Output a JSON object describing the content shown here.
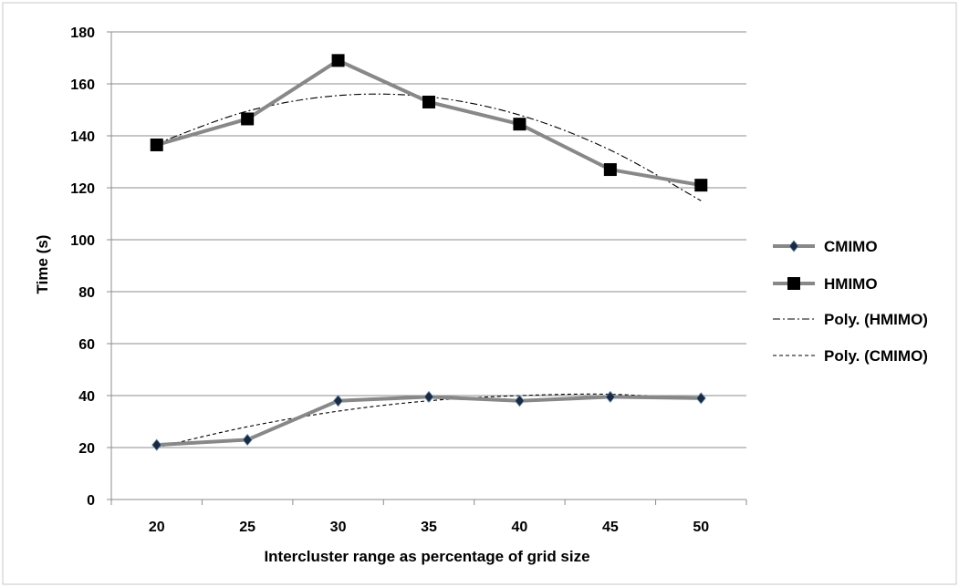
{
  "chart_data": {
    "type": "line",
    "title": "",
    "xlabel": "Intercluster range as percentage of grid size",
    "ylabel": "Time (s)",
    "categories": [
      "20",
      "25",
      "30",
      "35",
      "40",
      "45",
      "50"
    ],
    "ylim": [
      0,
      180
    ],
    "yticks": [
      "0",
      "20",
      "40",
      "60",
      "80",
      "100",
      "120",
      "140",
      "160",
      "180"
    ],
    "grid": true,
    "legend_position": "right",
    "series": [
      {
        "name": "CMIMO",
        "values": [
          21,
          23,
          38,
          39.5,
          38,
          39.5,
          39
        ],
        "marker": "diamond",
        "color": "#888888",
        "marker_color": "#1a2a40"
      },
      {
        "name": "HMIMO",
        "values": [
          136.5,
          146.5,
          169,
          153,
          144.5,
          127,
          121
        ],
        "marker": "square",
        "color": "#888888",
        "marker_color": "#000000"
      }
    ],
    "trendlines": [
      {
        "name": "Poly. (HMIMO)",
        "of": "HMIMO",
        "values": [
          137,
          149.5,
          155.5,
          155,
          148,
          134.5,
          115
        ],
        "style": "dash-dot"
      },
      {
        "name": "Poly. (CMIMO)",
        "of": "CMIMO",
        "values": [
          20,
          28,
          34,
          38,
          40,
          40.5,
          38.5
        ],
        "style": "dashed"
      }
    ]
  }
}
